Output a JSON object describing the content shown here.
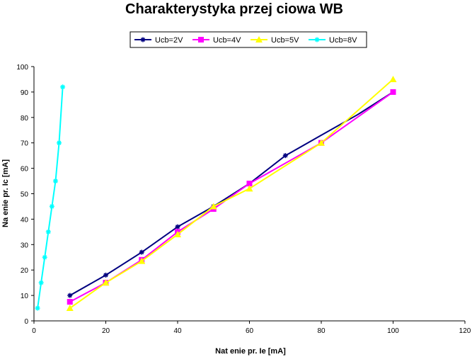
{
  "chart_data": {
    "type": "line",
    "title": "Charakterystyka przej  ciowa WB",
    "xlabel": "Nat    enie pr. Ie [mA]",
    "ylabel": "Na    enie pr. Ic [mA]",
    "xlim": [
      0,
      120
    ],
    "ylim": [
      0,
      100
    ],
    "x_ticks": [
      0,
      20,
      40,
      60,
      80,
      100,
      120
    ],
    "y_ticks": [
      0,
      10,
      20,
      30,
      40,
      50,
      60,
      70,
      80,
      90,
      100
    ],
    "grid": false,
    "legend_position": "top-center",
    "series": [
      {
        "name": "Ucb=2V",
        "color": "#000080",
        "marker": "asterisk",
        "points": [
          [
            10,
            10
          ],
          [
            20,
            18
          ],
          [
            30,
            27
          ],
          [
            40,
            37
          ],
          [
            50,
            45
          ],
          [
            60,
            54
          ],
          [
            70,
            65
          ],
          [
            80,
            73
          ],
          [
            90,
            81
          ],
          [
            100,
            90
          ]
        ],
        "marker_points": [
          [
            10,
            10
          ],
          [
            20,
            18
          ],
          [
            30,
            27
          ],
          [
            40,
            37
          ],
          [
            50,
            45
          ],
          [
            60,
            54
          ],
          [
            70,
            65
          ],
          [
            100,
            90
          ]
        ]
      },
      {
        "name": "Ucb=4V",
        "color": "#ff00ff",
        "marker": "square",
        "points": [
          [
            10,
            7.5
          ],
          [
            20,
            15
          ],
          [
            30,
            24
          ],
          [
            40,
            35
          ],
          [
            50,
            44
          ],
          [
            60,
            54
          ],
          [
            80,
            70
          ],
          [
            100,
            90
          ]
        ],
        "marker_points": [
          [
            10,
            7.5
          ],
          [
            20,
            15
          ],
          [
            30,
            24
          ],
          [
            40,
            35
          ],
          [
            50,
            44
          ],
          [
            60,
            54
          ],
          [
            80,
            70
          ],
          [
            100,
            90
          ]
        ]
      },
      {
        "name": "Ucb=5V",
        "color": "#ffff00",
        "marker": "triangle",
        "points": [
          [
            10,
            5
          ],
          [
            20,
            15
          ],
          [
            30,
            23.5
          ],
          [
            40,
            34
          ],
          [
            50,
            45
          ],
          [
            60,
            52
          ],
          [
            80,
            70
          ],
          [
            100,
            95
          ]
        ],
        "marker_points": [
          [
            10,
            5
          ],
          [
            20,
            15
          ],
          [
            30,
            23.5
          ],
          [
            40,
            34
          ],
          [
            50,
            45
          ],
          [
            60,
            52
          ],
          [
            80,
            70
          ],
          [
            100,
            95
          ]
        ]
      },
      {
        "name": "Ucb=8V",
        "color": "#00ffff",
        "marker": "asterisk",
        "points": [
          [
            1,
            5
          ],
          [
            2,
            15
          ],
          [
            3,
            25
          ],
          [
            4,
            35
          ],
          [
            5,
            45
          ],
          [
            6,
            55
          ],
          [
            7,
            70
          ],
          [
            8,
            92
          ]
        ],
        "marker_points": [
          [
            1,
            5
          ],
          [
            2,
            15
          ],
          [
            3,
            25
          ],
          [
            4,
            35
          ],
          [
            5,
            45
          ],
          [
            6,
            55
          ],
          [
            7,
            70
          ],
          [
            8,
            92
          ]
        ]
      }
    ]
  }
}
